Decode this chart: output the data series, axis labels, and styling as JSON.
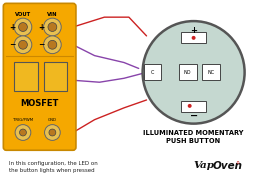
{
  "bg_color": "#ffffff",
  "mosfet_color": "#f5a800",
  "mosfet_border": "#c88800",
  "circle_color": "#c5d8d0",
  "circle_edge": "#555555",
  "title_circle": "ILLUMINATED MOMENTARY\nPUSH BUTTON",
  "mosfet_label": "MOSFET",
  "caption": "In this configuration, the LED on\nthe button lights when pressed",
  "wire_red": "#cc2222",
  "wire_purple": "#8844aa"
}
